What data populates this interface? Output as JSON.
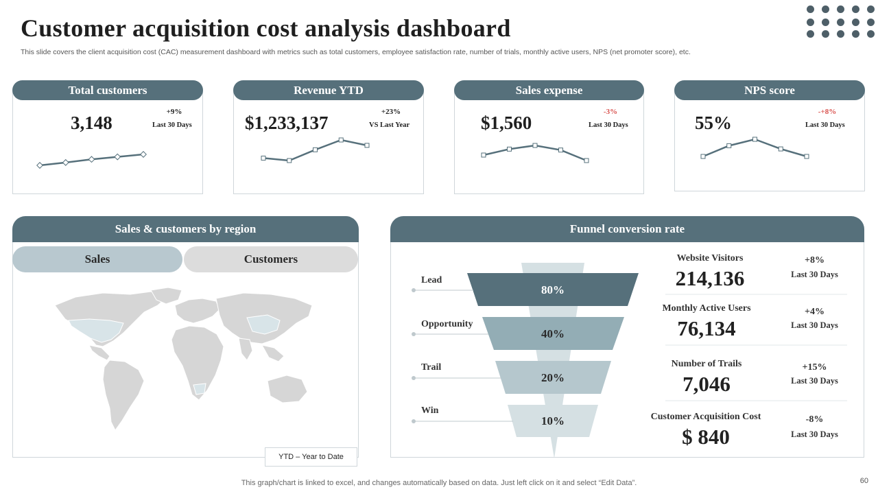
{
  "slide": {
    "title": "Customer acquisition cost analysis dashboard",
    "subtitle": "This slide covers the client acquisition cost (CAC) measurement dashboard with metrics such as total customers, employee satisfaction rate, number of trials, monthly active users, NPS (net promoter score), etc.",
    "footer_note": "This graph/chart is linked to excel, and changes automatically based on data. Just left click on it and select “Edit Data”.",
    "page_number": "60"
  },
  "colors": {
    "header_bg": "#56707b",
    "line": "#56707b",
    "negative": "#d9534f",
    "funnel_dark": "#56707b",
    "funnel_mid": "#93adb5",
    "funnel_light": "#b5c7cd",
    "funnel_lightest": "#d5e0e3"
  },
  "kpis": [
    {
      "title": "Total customers",
      "value": "3,148",
      "delta": "+9%",
      "delta_negative": false,
      "period": "Last 30 Days",
      "trend": [
        0,
        8,
        17,
        24,
        31
      ]
    },
    {
      "title": "Revenue YTD",
      "value": "$1,233,137",
      "delta": "+23%",
      "delta_negative": false,
      "period": "VS Last Year",
      "trend": [
        38,
        33,
        55,
        75,
        64
      ]
    },
    {
      "title": "Sales expense",
      "value": "$1,560",
      "delta": "-3%",
      "delta_negative": true,
      "period": "Last 30 Days",
      "trend": [
        52,
        65,
        73,
        63,
        40
      ]
    },
    {
      "title": "NPS score",
      "value": "55%",
      "delta": "-+8%",
      "delta_negative": true,
      "period": "Last 30 Days",
      "trend": [
        40,
        60,
        72,
        54,
        40
      ]
    }
  ],
  "region": {
    "header": "Sales & customers by region",
    "tabs": {
      "sales": "Sales",
      "customers": "Customers"
    },
    "ytd_label": "YTD – Year  to Date"
  },
  "funnel": {
    "header": "Funnel conversion rate",
    "stages": [
      {
        "label": "Lead",
        "value": "80%"
      },
      {
        "label": "Opportunity",
        "value": "40%"
      },
      {
        "label": "Trail",
        "value": "20%"
      },
      {
        "label": "Win",
        "value": "10%"
      }
    ],
    "metrics": [
      {
        "name": "Website Visitors",
        "value": "214,136",
        "delta": "+8%",
        "period": "Last 30 Days"
      },
      {
        "name": "Monthly Active Users",
        "value": "76,134",
        "delta": "+4%",
        "period": "Last 30 Days"
      },
      {
        "name": "Number of Trails",
        "value": "7,046",
        "delta": "+15%",
        "period": "Last 30 Days"
      },
      {
        "name": "Customer Acquisition Cost",
        "value": "$ 840",
        "delta": "-8%",
        "period": "Last 30 Days"
      }
    ]
  }
}
